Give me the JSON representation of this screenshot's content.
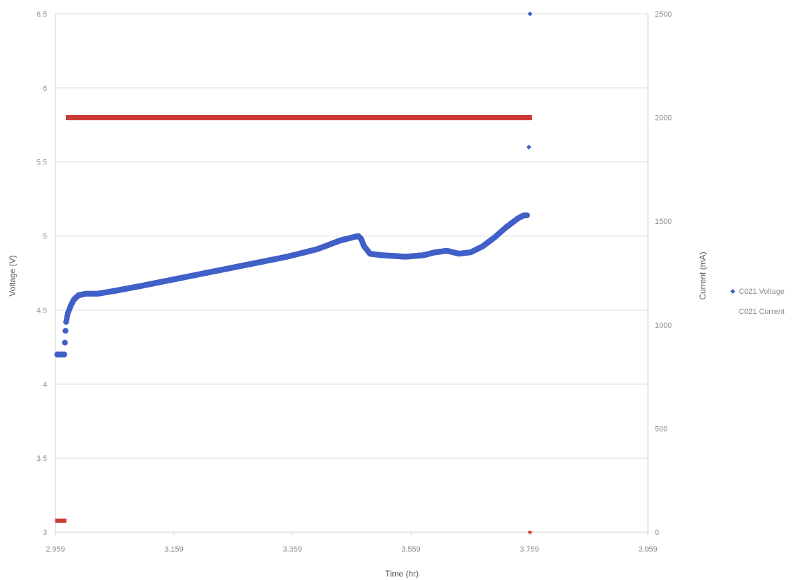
{
  "chart_data": {
    "type": "scatter",
    "xlabel": "Time (hr)",
    "ylabel_left": "Voltage (V)",
    "ylabel_right": "Current (mA)",
    "x_ticks": [
      "2.959",
      "3.159",
      "3.359",
      "3.559",
      "3.759",
      "3.959"
    ],
    "y_left_ticks": [
      "3",
      "3.5",
      "4",
      "4.5",
      "5",
      "5.5",
      "6",
      "6.5"
    ],
    "y_right_ticks": [
      "0",
      "500",
      "1000",
      "1500",
      "2000",
      "2500"
    ],
    "xlim": [
      2.959,
      3.959
    ],
    "ylim_left": [
      3,
      6.5
    ],
    "ylim_right": [
      0,
      2500
    ],
    "grid": true,
    "legend_position": "right",
    "series": [
      {
        "name": "C021 Voltage",
        "axis": "left",
        "color": "#4060c8",
        "x": [
          2.962,
          2.968,
          2.974,
          2.976,
          2.977,
          2.98,
          2.985,
          2.99,
          2.998,
          3.01,
          3.03,
          3.06,
          3.1,
          3.15,
          3.2,
          3.25,
          3.3,
          3.35,
          3.4,
          3.44,
          3.47,
          3.475,
          3.48,
          3.49,
          3.51,
          3.55,
          3.58,
          3.6,
          3.62,
          3.64,
          3.66,
          3.68,
          3.7,
          3.72,
          3.74,
          3.75,
          3.755,
          3.758,
          3.76
        ],
        "y": [
          4.2,
          4.2,
          4.2,
          4.36,
          4.42,
          4.48,
          4.53,
          4.57,
          4.6,
          4.61,
          4.61,
          4.63,
          4.66,
          4.7,
          4.74,
          4.78,
          4.82,
          4.86,
          4.91,
          4.97,
          5.0,
          4.98,
          4.93,
          4.88,
          4.87,
          4.86,
          4.87,
          4.89,
          4.9,
          4.88,
          4.89,
          4.93,
          4.99,
          5.06,
          5.12,
          5.14,
          5.14,
          5.6,
          6.5
        ]
      },
      {
        "name": "C021 Current",
        "axis": "right",
        "color": "#cc3a35",
        "x": [
          2.962,
          2.968,
          2.974,
          2.98,
          3.0,
          3.1,
          3.2,
          3.3,
          3.4,
          3.5,
          3.6,
          3.7,
          3.76,
          3.76
        ],
        "y": [
          55,
          55,
          55,
          2000,
          2000,
          2000,
          2000,
          2000,
          2000,
          2000,
          2000,
          2000,
          2000,
          0
        ]
      }
    ]
  }
}
